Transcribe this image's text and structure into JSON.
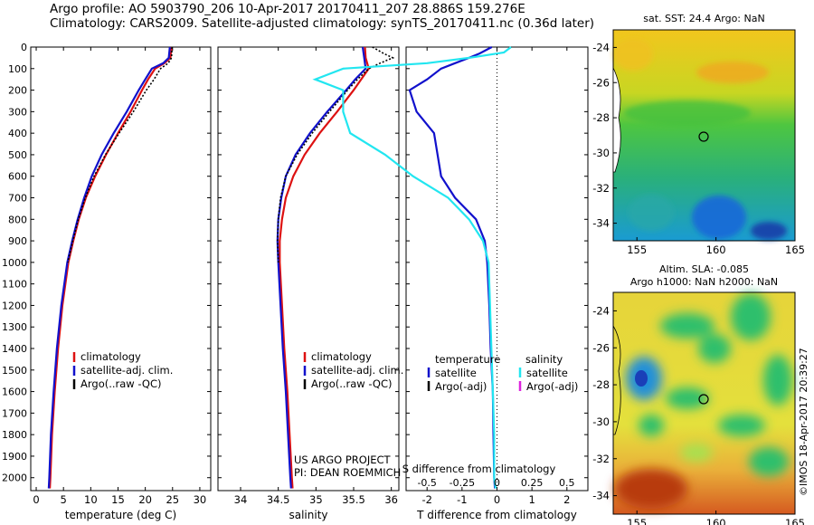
{
  "header": {
    "line1": "Argo profile: AO 5903790_206 10-Apr-2017 20170411_207 28.886S 159.276E",
    "line2": "Climatology: CARS2009. Satellite-adjusted climatology: synTS_20170411.nc (0.36d later)"
  },
  "colors": {
    "climatology": "#dd1111",
    "satellite": "#1111cc",
    "argo": "#000000",
    "sat_salinity": "#22e6f0",
    "argo_adj_s": "#dd22dd"
  },
  "chart_data": [
    {
      "type": "line",
      "xlabel": "temperature (deg C)",
      "xlim": [
        -1,
        32
      ],
      "xticks": [
        0,
        5,
        10,
        15,
        20,
        25,
        30
      ],
      "ylim": [
        2060,
        0
      ],
      "yticks": [
        0,
        100,
        200,
        300,
        400,
        500,
        600,
        700,
        800,
        900,
        1000,
        1100,
        1200,
        1300,
        1400,
        1500,
        1600,
        1700,
        1800,
        1900,
        2000
      ],
      "legend": [
        "climatology",
        "satellite-adj. clim.",
        "Argo(..raw -QC)"
      ],
      "series": [
        {
          "name": "climatology",
          "depth": [
            0,
            50,
            75,
            100,
            150,
            200,
            300,
            400,
            500,
            600,
            700,
            800,
            900,
            1000,
            1200,
            1400,
            1600,
            1800,
            2000,
            2050
          ],
          "values": [
            24.8,
            24.6,
            23.5,
            21.8,
            20.5,
            19.4,
            17.3,
            15.0,
            12.8,
            10.8,
            9.1,
            7.8,
            6.8,
            5.9,
            4.8,
            4.0,
            3.4,
            2.9,
            2.6,
            2.5
          ]
        },
        {
          "name": "satellite-adj. clim.",
          "depth": [
            0,
            50,
            75,
            100,
            150,
            200,
            300,
            400,
            500,
            600,
            700,
            800,
            900,
            1000,
            1200,
            1400,
            1600,
            1800,
            2000,
            2050
          ],
          "values": [
            24.5,
            24.3,
            23.3,
            21.2,
            20.0,
            18.8,
            16.6,
            14.2,
            12.0,
            10.2,
            8.8,
            7.6,
            6.6,
            5.7,
            4.6,
            3.8,
            3.2,
            2.7,
            2.4,
            2.3
          ]
        },
        {
          "name": "Argo(..raw -QC)",
          "depth": [
            0,
            50,
            75,
            100,
            150,
            200,
            300,
            400,
            500,
            600,
            700,
            800,
            900,
            1000
          ],
          "values": [
            24.9,
            24.8,
            24.2,
            22.8,
            21.6,
            20.2,
            17.8,
            15.2,
            12.7,
            10.6,
            9.0,
            7.7,
            6.7,
            5.8
          ]
        }
      ]
    },
    {
      "type": "line",
      "xlabel": "salinity",
      "xlim": [
        33.7,
        36.1
      ],
      "xticks": [
        34,
        34.5,
        35,
        35.5,
        36
      ],
      "ylim": [
        2060,
        0
      ],
      "legend": [
        "climatology",
        "satellite-adj. clim.",
        "Argo(..raw -QC)"
      ],
      "series": [
        {
          "name": "climatology",
          "depth": [
            0,
            50,
            100,
            150,
            200,
            300,
            400,
            500,
            600,
            700,
            800,
            900,
            1000,
            1200,
            1400,
            1600,
            1800,
            2000,
            2050
          ],
          "values": [
            35.65,
            35.66,
            35.7,
            35.6,
            35.5,
            35.28,
            35.05,
            34.85,
            34.7,
            34.6,
            34.55,
            34.52,
            34.52,
            34.55,
            34.58,
            34.62,
            34.65,
            34.68,
            34.69
          ]
        },
        {
          "name": "satellite-adj. clim.",
          "depth": [
            0,
            50,
            100,
            150,
            200,
            300,
            400,
            500,
            600,
            700,
            800,
            900,
            1000,
            1200,
            1400,
            1600,
            1800,
            2000,
            2050
          ],
          "values": [
            35.62,
            35.64,
            35.66,
            35.52,
            35.4,
            35.15,
            34.92,
            34.73,
            34.6,
            34.54,
            34.5,
            34.49,
            34.5,
            34.53,
            34.56,
            34.6,
            34.63,
            34.66,
            34.67
          ]
        },
        {
          "name": "Argo(..raw -QC)",
          "depth": [
            0,
            30,
            50,
            75,
            100,
            150,
            200,
            300,
            400,
            500,
            600,
            700,
            800,
            900,
            1000
          ],
          "values": [
            35.75,
            35.9,
            36.02,
            35.85,
            35.7,
            35.55,
            35.42,
            35.18,
            34.95,
            34.75,
            34.6,
            34.53,
            34.5,
            34.49,
            34.5
          ]
        }
      ],
      "annotation": [
        "US ARGO PROJECT",
        "PI: DEAN ROEMMICH"
      ]
    },
    {
      "type": "line",
      "xlabel": "T difference from climatology",
      "xlabel_top": "S difference from climatology",
      "xlim": [
        -2.6,
        2.6
      ],
      "xticks": [
        -2,
        -1,
        0,
        1,
        2
      ],
      "xticks_top": [
        -0.5,
        -0.25,
        0,
        0.25,
        0.5
      ],
      "ylim": [
        2060,
        0
      ],
      "legend_left": {
        "title": "temperature",
        "items": [
          "satellite",
          "Argo(-adj)"
        ]
      },
      "legend_right": {
        "title": "salinity",
        "items": [
          "satellite",
          "Argo(-adj)"
        ]
      },
      "series": [
        {
          "name": "satellite",
          "depth": [
            0,
            30,
            50,
            75,
            100,
            150,
            200,
            300,
            400,
            500,
            600,
            700,
            800,
            900,
            1000,
            1200,
            1400,
            1600,
            1800,
            2000,
            2050
          ],
          "values": [
            -0.15,
            -0.5,
            -0.8,
            -1.2,
            -1.6,
            -2.0,
            -2.5,
            -2.3,
            -1.8,
            -1.7,
            -1.6,
            -1.2,
            -0.6,
            -0.35,
            -0.28,
            -0.22,
            -0.18,
            -0.12,
            -0.1,
            -0.08,
            -0.06
          ]
        },
        {
          "name": "satellite",
          "depth": [
            0,
            25,
            50,
            75,
            100,
            150,
            200,
            300,
            400,
            500,
            600,
            700,
            800,
            900,
            1000,
            1200,
            1400,
            1600,
            1800,
            2000,
            2050
          ],
          "values": [
            0.1,
            0.05,
            -0.2,
            -0.5,
            -1.1,
            -1.3,
            -1.1,
            -1.1,
            -1.05,
            -0.8,
            -0.6,
            -0.35,
            -0.2,
            -0.1,
            -0.06,
            -0.05,
            -0.04,
            -0.03,
            -0.02,
            -0.02,
            -0.01
          ]
        }
      ]
    },
    {
      "type": "heatmap",
      "title": "sat. SST: 24.4 Argo: NaN",
      "xticks": [
        155,
        160,
        165
      ],
      "yticks": [
        -24,
        -26,
        -28,
        -30,
        -32,
        -34
      ],
      "xlim": [
        153.5,
        165
      ],
      "ylim": [
        -35,
        -23
      ]
    },
    {
      "type": "heatmap",
      "title_line1": "Altim. SLA: -0.085",
      "title_line2": "Argo h1000: NaN h2000: NaN",
      "xticks": [
        155,
        160,
        165
      ],
      "yticks": [
        -24,
        -26,
        -28,
        -30,
        -32,
        -34
      ],
      "xlim": [
        153.5,
        165
      ],
      "ylim": [
        -35,
        -23
      ]
    }
  ],
  "side_text": "©IMOS 18-Apr-2017 20:39:27"
}
